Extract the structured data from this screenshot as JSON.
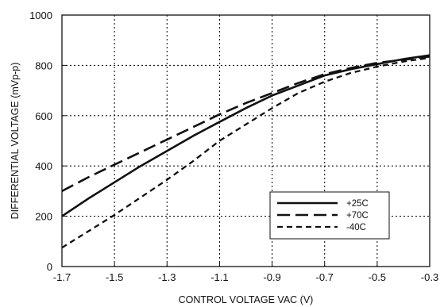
{
  "chart_data": {
    "type": "line",
    "title": "",
    "xlabel": "CONTROL VOLTAGE VAC (V)",
    "ylabel": "DIFFERENTIAL VOLTAGE (mVp-p)",
    "xlim": [
      -1.7,
      -0.3
    ],
    "ylim": [
      0,
      1000
    ],
    "xticks": [
      -1.7,
      -1.5,
      -1.3,
      -1.1,
      -0.9,
      -0.7,
      -0.5,
      -0.3
    ],
    "yticks": [
      0,
      200,
      400,
      600,
      800,
      1000
    ],
    "xtick_labels": [
      "-1.7",
      "-1.5",
      "-1.3",
      "-1.1",
      "-0.9",
      "-0.7",
      "-0.5",
      "-0.3"
    ],
    "ytick_labels": [
      "0",
      "200",
      "400",
      "600",
      "800",
      "1000"
    ],
    "grid": true,
    "grid_style": "dotted",
    "legend_position": "bottom-right",
    "series": [
      {
        "name": "+25C",
        "line_style": "solid",
        "x": [
          -1.7,
          -1.6,
          -1.5,
          -1.4,
          -1.3,
          -1.2,
          -1.1,
          -1.0,
          -0.9,
          -0.8,
          -0.7,
          -0.6,
          -0.5,
          -0.4,
          -0.3
        ],
        "y": [
          200,
          270,
          335,
          400,
          460,
          520,
          575,
          630,
          680,
          720,
          760,
          785,
          805,
          825,
          840
        ]
      },
      {
        "name": "+70C",
        "line_style": "dashed",
        "x": [
          -1.7,
          -1.6,
          -1.5,
          -1.4,
          -1.3,
          -1.2,
          -1.1,
          -1.0,
          -0.9,
          -0.8,
          -0.7,
          -0.6,
          -0.5,
          -0.4,
          -0.3
        ],
        "y": [
          300,
          355,
          405,
          455,
          505,
          555,
          605,
          650,
          690,
          730,
          765,
          790,
          810,
          822,
          835
        ]
      },
      {
        "name": "-40C",
        "line_style": "dotted-dash",
        "x": [
          -1.7,
          -1.6,
          -1.5,
          -1.4,
          -1.3,
          -1.2,
          -1.1,
          -1.0,
          -0.9,
          -0.8,
          -0.7,
          -0.6,
          -0.5,
          -0.4,
          -0.3
        ],
        "y": [
          75,
          140,
          205,
          275,
          345,
          420,
          500,
          565,
          630,
          690,
          735,
          770,
          795,
          815,
          830
        ]
      }
    ]
  }
}
